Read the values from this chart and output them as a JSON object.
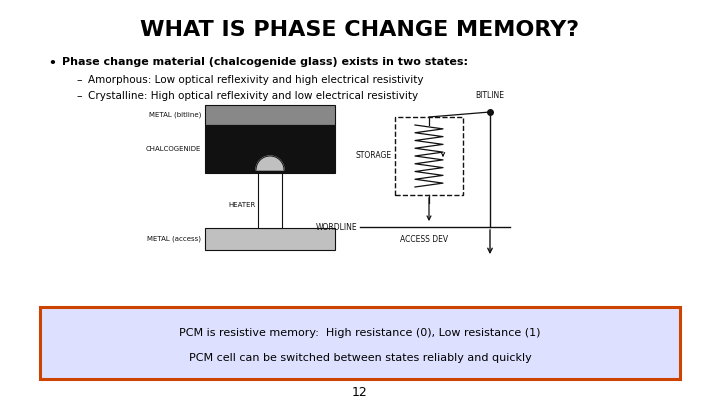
{
  "title": "WHAT IS PHASE CHANGE MEMORY?",
  "bullet": "Phase change material (chalcogenide glass) exists in two states:",
  "sub1": "Amorphous: Low optical reflexivity and high electrical resistivity",
  "sub2": "Crystalline: High optical reflexivity and low electrical resistivity",
  "box_line1": "PCM is resistive memory:  High resistance (0), Low resistance (1)",
  "box_line2": "PCM cell can be switched between states reliably and quickly",
  "page_num": "12",
  "bg_color": "#ffffff",
  "title_color": "#000000",
  "text_color": "#000000",
  "box_border_color": "#cc4400",
  "box_fill_color": "#dde0ff",
  "dark_gray": "#888888",
  "light_gray": "#c0c0c0",
  "diagram_black": "#111111"
}
